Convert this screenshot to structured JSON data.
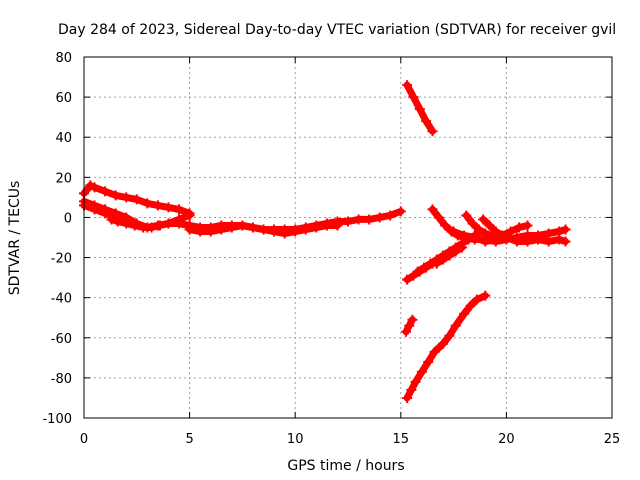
{
  "chart_data": {
    "type": "scatter",
    "title": "Day 284 of 2023, Sidereal Day-to-day VTEC variation (SDTVAR) for receiver gvil",
    "xlabel": "GPS time / hours",
    "ylabel": "SDTVAR / TECUs",
    "xlim": [
      0,
      25
    ],
    "ylim": [
      -100,
      80
    ],
    "x_ticks": [
      0,
      5,
      10,
      15,
      20,
      25
    ],
    "x_tick_labels": [
      "0",
      "5",
      "10",
      "15",
      "20",
      "25"
    ],
    "y_ticks": [
      -100,
      -80,
      -60,
      -40,
      -20,
      0,
      20,
      40,
      60,
      80
    ],
    "y_tick_labels": [
      "-100",
      "-80",
      "-60",
      "-40",
      "-20",
      "0",
      "20",
      "40",
      "60",
      "80"
    ],
    "grid": true,
    "marker": "plus",
    "color": "#ff0000",
    "series": [
      {
        "x": [
          0.0,
          0.3,
          0.5,
          1.0,
          1.5,
          2.0,
          2.5,
          3.0,
          3.5,
          4.0,
          4.5,
          5.0
        ],
        "y": [
          12,
          16,
          15,
          13,
          11,
          10,
          9,
          7,
          6,
          5,
          4,
          2
        ]
      },
      {
        "x": [
          0.0,
          0.5,
          1.0,
          1.5,
          2.0,
          2.5,
          3.0,
          3.5,
          4.0,
          4.5,
          5.0
        ],
        "y": [
          8,
          6,
          4,
          2,
          0,
          -3,
          -5,
          -4,
          -3,
          -1,
          1
        ]
      },
      {
        "x": [
          0.0,
          0.5,
          1.0,
          1.5,
          2.0
        ],
        "y": [
          6,
          4,
          2,
          0,
          -1
        ]
      },
      {
        "x": [
          1.3,
          1.6,
          2.0,
          2.4,
          2.8,
          3.2,
          3.6,
          4.0,
          4.5,
          5.0,
          5.5,
          6.0,
          6.5,
          7.0,
          7.5,
          8.0,
          8.5,
          9.0,
          9.5,
          10.0,
          10.5,
          11.0,
          11.5,
          12.0,
          12.5,
          13.0,
          13.5,
          14.0,
          14.5,
          15.0
        ],
        "y": [
          -1,
          -2,
          -3,
          -4,
          -5,
          -5,
          -4,
          -3,
          -3,
          -4,
          -5,
          -5,
          -4,
          -4,
          -4,
          -5,
          -6,
          -6,
          -6,
          -6,
          -5,
          -4,
          -3,
          -2,
          -2,
          -1,
          -1,
          0,
          1,
          3
        ]
      },
      {
        "x": [
          5.0,
          5.5,
          6.0,
          6.5,
          7.0,
          7.5,
          8.0,
          8.5,
          9.0,
          9.5,
          10.0,
          10.5,
          11.0,
          11.5,
          12.0
        ],
        "y": [
          -6,
          -7,
          -7,
          -6,
          -5,
          -4,
          -5,
          -6,
          -7,
          -8,
          -7,
          -6,
          -5,
          -4,
          -4
        ]
      },
      {
        "x": [
          15.3,
          15.6,
          15.9,
          16.2,
          16.5
        ],
        "y": [
          66,
          60,
          54,
          48,
          43
        ]
      },
      {
        "x": [
          16.5,
          16.8,
          17.1,
          17.4,
          17.7,
          18.0,
          18.5,
          19.0,
          19.5,
          20.0,
          20.5,
          21.0,
          21.5,
          22.0,
          22.5,
          22.8
        ],
        "y": [
          4,
          0,
          -4,
          -7,
          -9,
          -10,
          -11,
          -11,
          -12,
          -11,
          -10,
          -9,
          -9,
          -8,
          -7,
          -6
        ]
      },
      {
        "x": [
          17.5,
          18.0,
          18.5,
          19.0,
          19.5,
          20.0,
          20.5,
          21.0,
          21.5,
          22.0,
          22.5,
          22.8
        ],
        "y": [
          -7,
          -9,
          -10,
          -12,
          -11,
          -10,
          -12,
          -12,
          -11,
          -12,
          -11,
          -12
        ]
      },
      {
        "x": [
          18.1,
          18.4,
          18.7,
          19.0,
          19.3,
          19.7
        ],
        "y": [
          1,
          -3,
          -6,
          -8,
          -9,
          -10
        ]
      },
      {
        "x": [
          18.9,
          19.2,
          19.5,
          19.8
        ],
        "y": [
          -1,
          -4,
          -7,
          -9
        ]
      },
      {
        "x": [
          19.8,
          20.2,
          20.6,
          21.0
        ],
        "y": [
          -9,
          -7,
          -5,
          -4
        ]
      },
      {
        "x": [
          15.3,
          15.6,
          15.9,
          16.2,
          16.5,
          16.8,
          17.1,
          17.3
        ],
        "y": [
          -31,
          -29,
          -27,
          -25,
          -23,
          -21,
          -20,
          -19
        ]
      },
      {
        "x": [
          15.8,
          16.1,
          16.4,
          16.7,
          17.0,
          17.3,
          17.6,
          17.9,
          18.2,
          18.5,
          18.7
        ],
        "y": [
          -27,
          -25,
          -23,
          -21,
          -19,
          -17,
          -15,
          -13,
          -11,
          -9,
          -8
        ]
      },
      {
        "x": [
          16.7,
          17.0,
          17.3,
          17.6,
          17.9
        ],
        "y": [
          -23,
          -21,
          -19,
          -17,
          -15
        ]
      },
      {
        "x": [
          15.25,
          15.4,
          15.55
        ],
        "y": [
          -57,
          -54,
          -51
        ]
      },
      {
        "x": [
          15.3,
          15.5,
          15.7,
          16.0,
          16.3,
          16.6,
          17.0,
          17.3,
          17.6,
          18.0,
          18.3,
          18.6,
          19.0
        ],
        "y": [
          -90,
          -86,
          -82,
          -77,
          -72,
          -67,
          -63,
          -59,
          -54,
          -48,
          -44,
          -41,
          -39
        ]
      }
    ]
  }
}
